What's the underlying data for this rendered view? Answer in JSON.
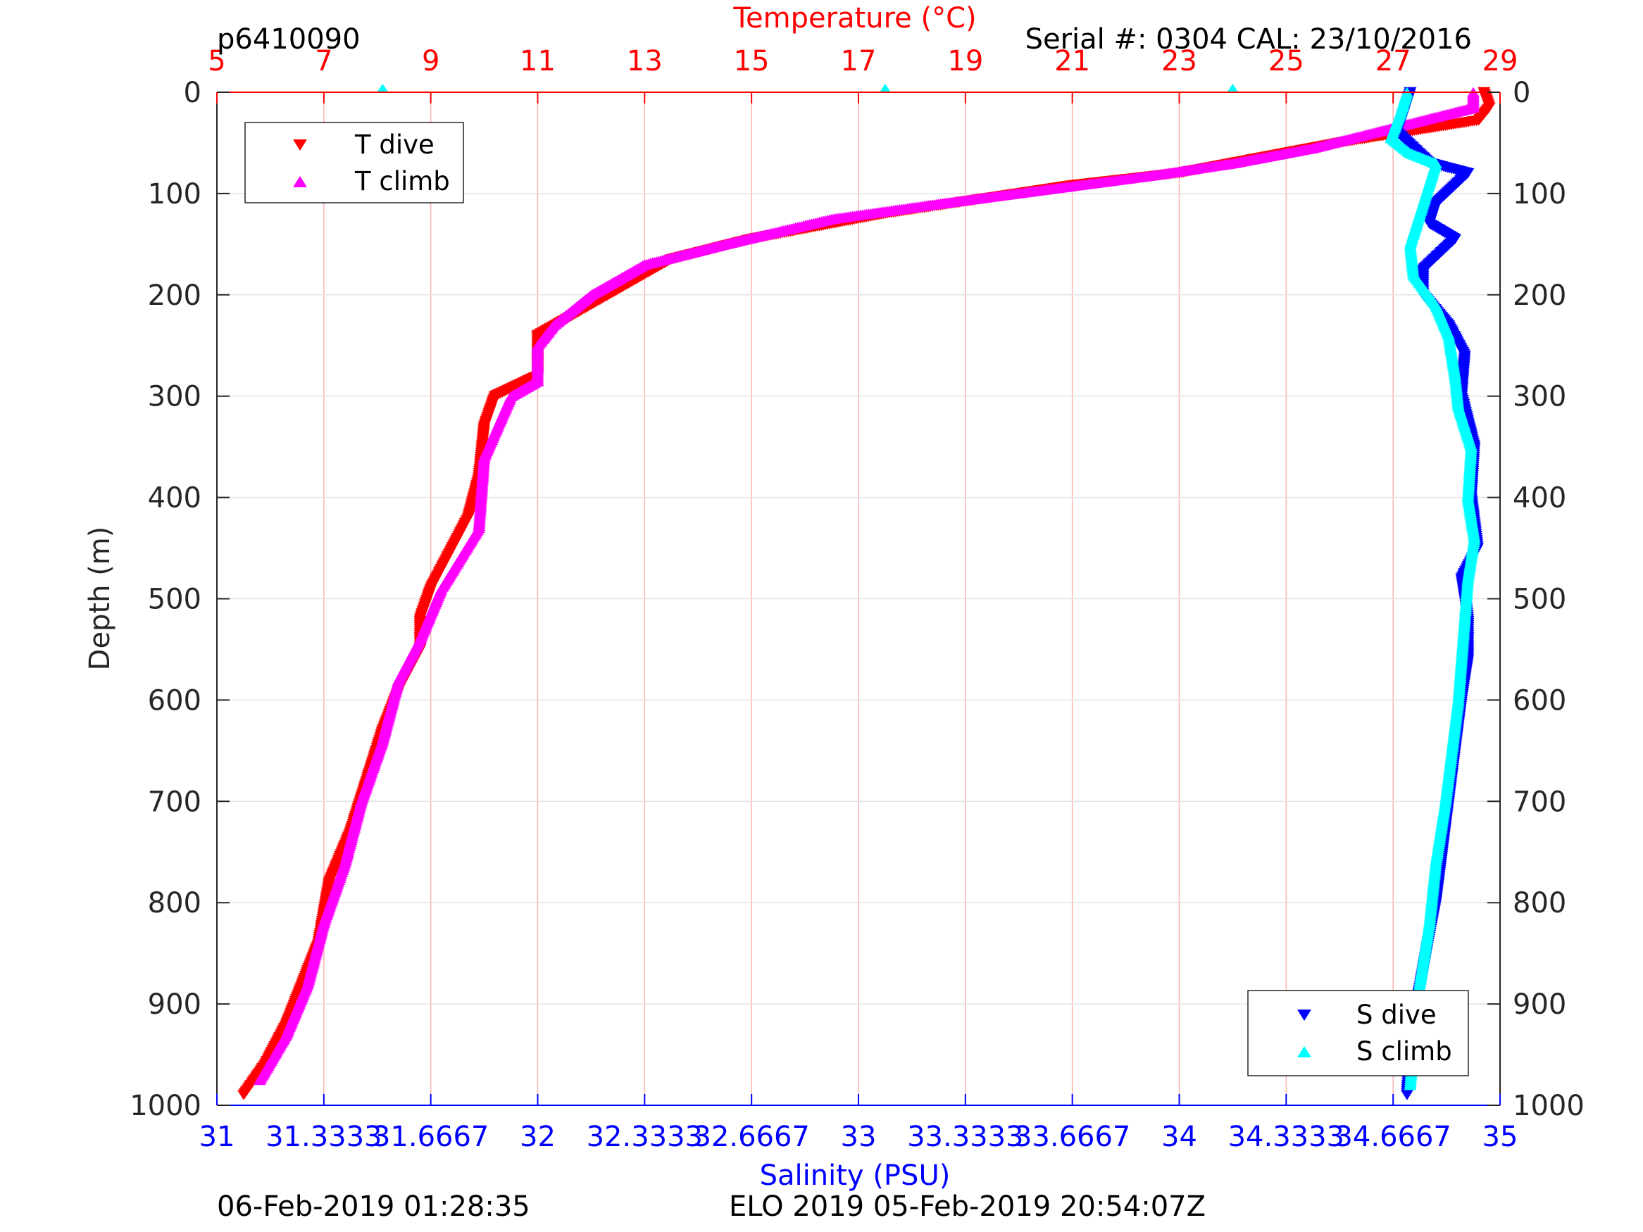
{
  "header": {
    "left": "p6410090",
    "right": "Serial #: 0304  CAL: 23/10/2016"
  },
  "footer": {
    "left": "06-Feb-2019 01:28:35",
    "center": "ELO 2019 05-Feb-2019 20:54:07Z"
  },
  "colors": {
    "t_dive": "#ff0000",
    "t_climb": "#ff00ff",
    "s_dive": "#0000ff",
    "s_climb": "#00ffff",
    "temp_axis": "#ff0000",
    "sal_axis": "#0000ff"
  },
  "chart_data": {
    "type": "scatter",
    "grid": true,
    "y_axis": {
      "label": "Depth (m)",
      "range": [
        0,
        1000
      ],
      "reversed": true,
      "ticks": [
        "0",
        "100",
        "200",
        "300",
        "400",
        "500",
        "600",
        "700",
        "800",
        "900",
        "1000"
      ]
    },
    "temperature_axis": {
      "label": "Temperature (°C)",
      "position": "top",
      "range": [
        5,
        29
      ],
      "ticks": [
        "5",
        "7",
        "9",
        "11",
        "13",
        "15",
        "17",
        "19",
        "21",
        "23",
        "25",
        "27",
        "29"
      ]
    },
    "salinity_axis": {
      "label": "Salinity (PSU)",
      "position": "bottom",
      "range": [
        31,
        35
      ],
      "ticks": [
        "31",
        "31.3333",
        "31.6667",
        "32",
        "32.3333",
        "32.6667",
        "33",
        "33.3333",
        "33.6667",
        "34",
        "34.3333",
        "34.6667",
        "35"
      ]
    },
    "legends": [
      {
        "placement": "top-left",
        "entries": [
          {
            "series": "T dive",
            "label": "T dive"
          },
          {
            "series": "T climb",
            "label": "T climb"
          }
        ]
      },
      {
        "placement": "bottom-right",
        "entries": [
          {
            "series": "S dive",
            "label": "S dive"
          },
          {
            "series": "S climb",
            "label": "S climb"
          }
        ]
      }
    ],
    "series": [
      {
        "name": "T dive",
        "axis": "temperature",
        "marker": "triangle-down",
        "points": [
          [
            28.7,
            0
          ],
          [
            28.8,
            15
          ],
          [
            28.6,
            28
          ],
          [
            26,
            50
          ],
          [
            24.5,
            65
          ],
          [
            23,
            80
          ],
          [
            21,
            92
          ],
          [
            19,
            108
          ],
          [
            17.5,
            120
          ],
          [
            15,
            145
          ],
          [
            13.5,
            165
          ],
          [
            12.5,
            195
          ],
          [
            11.5,
            225
          ],
          [
            11,
            240
          ],
          [
            11,
            280
          ],
          [
            10.2,
            300
          ],
          [
            10,
            330
          ],
          [
            9.9,
            380
          ],
          [
            9.7,
            420
          ],
          [
            9.3,
            460
          ],
          [
            9,
            490
          ],
          [
            8.8,
            520
          ],
          [
            8.8,
            550
          ],
          [
            8.4,
            590
          ],
          [
            8.1,
            630
          ],
          [
            7.8,
            680
          ],
          [
            7.5,
            730
          ],
          [
            7.1,
            780
          ],
          [
            6.9,
            840
          ],
          [
            6.6,
            880
          ],
          [
            6.3,
            920
          ],
          [
            5.9,
            960
          ],
          [
            5.5,
            990
          ]
        ]
      },
      {
        "name": "T climb",
        "axis": "temperature",
        "marker": "triangle-up",
        "points": [
          [
            28.5,
            0
          ],
          [
            28.5,
            15
          ],
          [
            27,
            35
          ],
          [
            25.5,
            55
          ],
          [
            24,
            70
          ],
          [
            22.5,
            82
          ],
          [
            20.5,
            96
          ],
          [
            18.5,
            110
          ],
          [
            16.5,
            125
          ],
          [
            14.5,
            150
          ],
          [
            13,
            170
          ],
          [
            12,
            200
          ],
          [
            11.3,
            230
          ],
          [
            11,
            250
          ],
          [
            11,
            285
          ],
          [
            10.5,
            300
          ],
          [
            10,
            360
          ],
          [
            9.9,
            430
          ],
          [
            9.2,
            490
          ],
          [
            8.8,
            540
          ],
          [
            8.4,
            580
          ],
          [
            8.1,
            640
          ],
          [
            7.7,
            700
          ],
          [
            7.4,
            760
          ],
          [
            7,
            820
          ],
          [
            6.7,
            880
          ],
          [
            6.3,
            930
          ],
          [
            5.8,
            975
          ]
        ]
      },
      {
        "name": "S dive",
        "axis": "salinity",
        "marker": "triangle-down",
        "points": [
          [
            34.72,
            0
          ],
          [
            34.7,
            20
          ],
          [
            34.68,
            40
          ],
          [
            34.78,
            70
          ],
          [
            34.9,
            80
          ],
          [
            34.85,
            95
          ],
          [
            34.8,
            110
          ],
          [
            34.78,
            130
          ],
          [
            34.86,
            145
          ],
          [
            34.76,
            175
          ],
          [
            34.76,
            200
          ],
          [
            34.84,
            230
          ],
          [
            34.89,
            260
          ],
          [
            34.88,
            300
          ],
          [
            34.92,
            350
          ],
          [
            34.91,
            400
          ],
          [
            34.93,
            450
          ],
          [
            34.88,
            480
          ],
          [
            34.9,
            520
          ],
          [
            34.9,
            560
          ],
          [
            34.88,
            600
          ],
          [
            34.86,
            650
          ],
          [
            34.84,
            700
          ],
          [
            34.82,
            750
          ],
          [
            34.8,
            800
          ],
          [
            34.77,
            850
          ],
          [
            34.74,
            900
          ],
          [
            34.72,
            940
          ],
          [
            34.71,
            990
          ]
        ]
      },
      {
        "name": "S climb",
        "axis": "salinity",
        "marker": "triangle-up",
        "points": [
          [
            34.71,
            0
          ],
          [
            34.69,
            20
          ],
          [
            34.66,
            45
          ],
          [
            34.72,
            60
          ],
          [
            34.8,
            70
          ],
          [
            34.78,
            90
          ],
          [
            34.76,
            110
          ],
          [
            34.74,
            130
          ],
          [
            34.72,
            150
          ],
          [
            34.73,
            180
          ],
          [
            34.8,
            210
          ],
          [
            34.84,
            240
          ],
          [
            34.86,
            280
          ],
          [
            34.87,
            310
          ],
          [
            34.91,
            350
          ],
          [
            34.9,
            400
          ],
          [
            34.92,
            440
          ],
          [
            34.9,
            480
          ],
          [
            34.89,
            520
          ],
          [
            34.88,
            560
          ],
          [
            34.87,
            600
          ],
          [
            34.85,
            650
          ],
          [
            34.83,
            700
          ],
          [
            34.8,
            760
          ],
          [
            34.78,
            820
          ],
          [
            34.75,
            880
          ],
          [
            34.73,
            940
          ],
          [
            34.72,
            980
          ]
        ]
      }
    ],
    "annotations": [
      {
        "type": "surface-marker",
        "temperature": 8.1,
        "depth": 0
      },
      {
        "type": "surface-marker",
        "temperature": 17.5,
        "depth": 0
      },
      {
        "type": "surface-marker",
        "temperature": 24,
        "depth": 0
      }
    ]
  }
}
